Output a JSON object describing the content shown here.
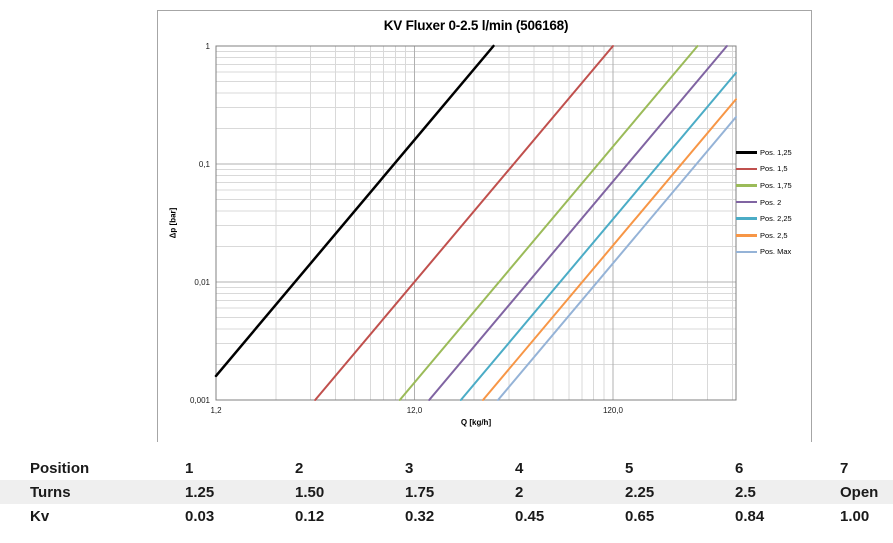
{
  "chart_data": {
    "type": "line",
    "title": "KV Fluxer 0-2.5 l/min (506168)",
    "xlabel": "Q [kg/h]",
    "ylabel": "Δp [bar]",
    "x_scale": "log",
    "y_scale": "log",
    "xlim": [
      1.2,
      500
    ],
    "ylim": [
      0.001,
      1
    ],
    "grid": true,
    "legend_position": "right",
    "x_ticks": [
      {
        "value": 1.2,
        "label": "1,2"
      },
      {
        "value": 12,
        "label": "12,0"
      },
      {
        "value": 120,
        "label": "120,0"
      }
    ],
    "y_ticks": [
      {
        "value": 1,
        "label": "1"
      },
      {
        "value": 0.1,
        "label": "0,1"
      },
      {
        "value": 0.01,
        "label": "0,01"
      },
      {
        "value": 0.001,
        "label": "0,001"
      }
    ],
    "colors": {
      "minor_grid": "#d9d9d9",
      "major_grid": "#b0b0b0",
      "axis_border": "#808080"
    },
    "series": [
      {
        "name": "Pos. 1,25",
        "color": "#000000",
        "kv": 0.03,
        "width": 2.5,
        "points": [
          [
            1.2,
            0.0016
          ],
          [
            30,
            1
          ]
        ]
      },
      {
        "name": "Pos. 1,5",
        "color": "#C0504D",
        "kv": 0.12,
        "width": 2,
        "points": [
          [
            3.79,
            0.001
          ],
          [
            120,
            1
          ]
        ]
      },
      {
        "name": "Pos. 1,75",
        "color": "#9BBB59",
        "kv": 0.32,
        "width": 2,
        "points": [
          [
            10.12,
            0.001
          ],
          [
            320,
            1
          ]
        ]
      },
      {
        "name": "Pos. 2",
        "color": "#8064A2",
        "kv": 0.45,
        "width": 2,
        "points": [
          [
            14.23,
            0.001
          ],
          [
            450,
            1
          ]
        ]
      },
      {
        "name": "Pos. 2,25",
        "color": "#4BACC6",
        "kv": 0.65,
        "width": 2,
        "points": [
          [
            20.55,
            0.001
          ],
          [
            500,
            0.592
          ]
        ]
      },
      {
        "name": "Pos. 2,5",
        "color": "#F79646",
        "kv": 0.84,
        "width": 2,
        "points": [
          [
            26.56,
            0.001
          ],
          [
            500,
            0.354
          ]
        ]
      },
      {
        "name": "Pos. Max",
        "color": "#95B3D7",
        "kv": 1.0,
        "width": 2,
        "points": [
          [
            31.62,
            0.001
          ],
          [
            500,
            0.25
          ]
        ]
      }
    ]
  },
  "table": {
    "rows": [
      {
        "label": "Position",
        "shaded": false,
        "values": [
          "1",
          "2",
          "3",
          "4",
          "5",
          "6",
          "7"
        ]
      },
      {
        "label": "Turns",
        "shaded": true,
        "values": [
          "1.25",
          "1.50",
          "1.75",
          "2",
          "2.25",
          "2.5",
          "Open"
        ]
      },
      {
        "label": "Kv",
        "shaded": false,
        "values": [
          "0.03",
          "0.12",
          "0.32",
          "0.45",
          "0.65",
          "0.84",
          "1.00"
        ]
      }
    ]
  }
}
